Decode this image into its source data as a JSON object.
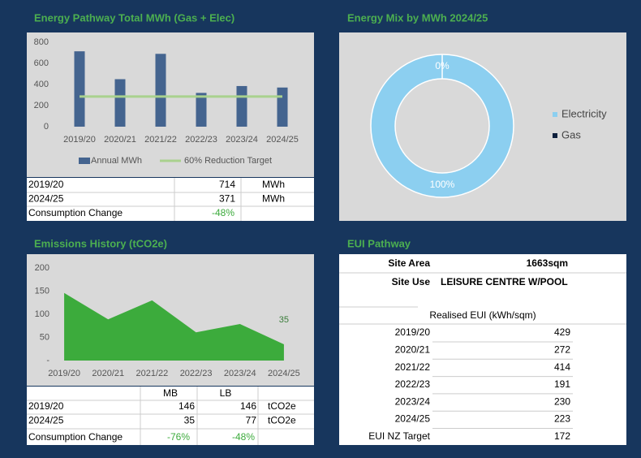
{
  "chart_data": [
    {
      "type": "bar",
      "title": "Energy Pathway Total MWh (Gas + Elec)",
      "categories": [
        "2019/20",
        "2020/21",
        "2021/22",
        "2022/23",
        "2023/24",
        "2024/25"
      ],
      "series": [
        {
          "name": "Annual MWh",
          "type": "bar",
          "color": "#44648f",
          "values": [
            714,
            450,
            690,
            320,
            385,
            371
          ]
        },
        {
          "name": "60% Reduction Target",
          "type": "line",
          "color": "#a9d18e",
          "values": [
            286,
            286,
            286,
            286,
            286,
            286
          ]
        }
      ],
      "ylim": [
        0,
        800
      ],
      "yticks": [
        0,
        200,
        400,
        600,
        800
      ],
      "grid": false,
      "legend": "bottom"
    },
    {
      "type": "donut",
      "title": "Energy Mix by MWh 2024/25",
      "categories": [
        "Electricity",
        "Gas"
      ],
      "values": [
        100,
        0
      ],
      "value_labels": [
        "100%",
        "0%"
      ],
      "colors": [
        "#8ccff0",
        "#0d1f3c"
      ],
      "legend": "right"
    },
    {
      "type": "area",
      "title": "Emissions History (tCO2e)",
      "categories": [
        "2019/20",
        "2020/21",
        "2021/22",
        "2022/23",
        "2023/24",
        "2024/25"
      ],
      "values": [
        146,
        89,
        130,
        61,
        79,
        35
      ],
      "color": "#3cab3c",
      "ylim": [
        0,
        200
      ],
      "yticks": [
        {
          "value": 0,
          "label": "-"
        },
        50,
        100,
        150,
        200
      ],
      "grid": false
    }
  ],
  "energy_table": {
    "rows": [
      [
        "2019/20",
        "714",
        "MWh"
      ],
      [
        "2024/25",
        "371",
        "MWh"
      ],
      [
        "Consumption Change",
        "-48%"
      ]
    ]
  },
  "emissions_table": {
    "header": [
      "MB",
      "LB"
    ],
    "rows": [
      [
        "2019/20",
        "146",
        "146",
        "tCO2e"
      ],
      [
        "2024/25",
        "35",
        "77",
        "tCO2e"
      ],
      [
        "Consumption Change",
        "-76%",
        "-48%"
      ]
    ]
  },
  "eui": {
    "title": "EUI Pathway",
    "site_area_label": "Site Area",
    "site_area": "1663sqm",
    "site_use_label": "Site Use",
    "site_use": "LEISURE CENTRE W/POOL",
    "header": "Realised EUI (kWh/sqm)",
    "rows": [
      [
        "2019/20",
        "429"
      ],
      [
        "2020/21",
        "272"
      ],
      [
        "2021/22",
        "414"
      ],
      [
        "2022/23",
        "191"
      ],
      [
        "2023/24",
        "230"
      ],
      [
        "2024/25",
        "223"
      ],
      [
        "EUI NZ Target",
        "172"
      ]
    ]
  }
}
